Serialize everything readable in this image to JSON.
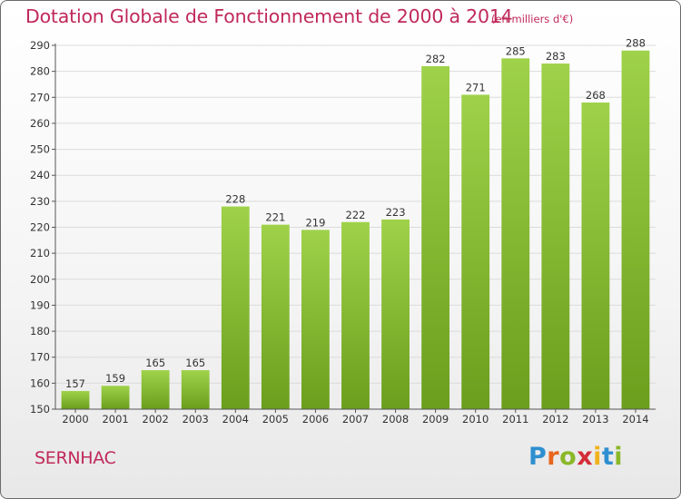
{
  "header": {
    "title": "Dotation Globale de Fonctionnement de 2000 à 2014",
    "unit": "(en milliers d'€)"
  },
  "footer": {
    "location": "SERNHAC",
    "brand": "Proxiti",
    "brand_letters": [
      {
        "ch": "P",
        "color": "#2e8fd0"
      },
      {
        "ch": "r",
        "color": "#e8661c"
      },
      {
        "ch": "o",
        "color": "#8ab828"
      },
      {
        "ch": "x",
        "color": "#d42d38"
      },
      {
        "ch": "i",
        "color": "#f0b31c"
      },
      {
        "ch": "t",
        "color": "#2e8fd0"
      },
      {
        "ch": "i",
        "color": "#8ab828"
      }
    ]
  },
  "colors": {
    "title": "#c0295a",
    "bar_light": "#9fd24a",
    "bar_dark": "#6a9e1c",
    "grid": "#dcdcdc",
    "axis": "#555555"
  },
  "chart_data": {
    "type": "bar",
    "title": "Dotation Globale de Fonctionnement de 2000 à 2014",
    "subtitle": "(en milliers d'€)",
    "xlabel": "",
    "ylabel": "",
    "categories": [
      "2000",
      "2001",
      "2002",
      "2003",
      "2004",
      "2005",
      "2006",
      "2007",
      "2008",
      "2009",
      "2010",
      "2011",
      "2012",
      "2013",
      "2014"
    ],
    "values": [
      157,
      159,
      165,
      165,
      228,
      221,
      219,
      222,
      223,
      282,
      271,
      285,
      283,
      268,
      288
    ],
    "ylim": [
      150,
      290
    ],
    "yticks": [
      150,
      160,
      170,
      180,
      190,
      200,
      210,
      220,
      230,
      240,
      250,
      260,
      270,
      280,
      290
    ],
    "grid": true,
    "legend": "none"
  }
}
